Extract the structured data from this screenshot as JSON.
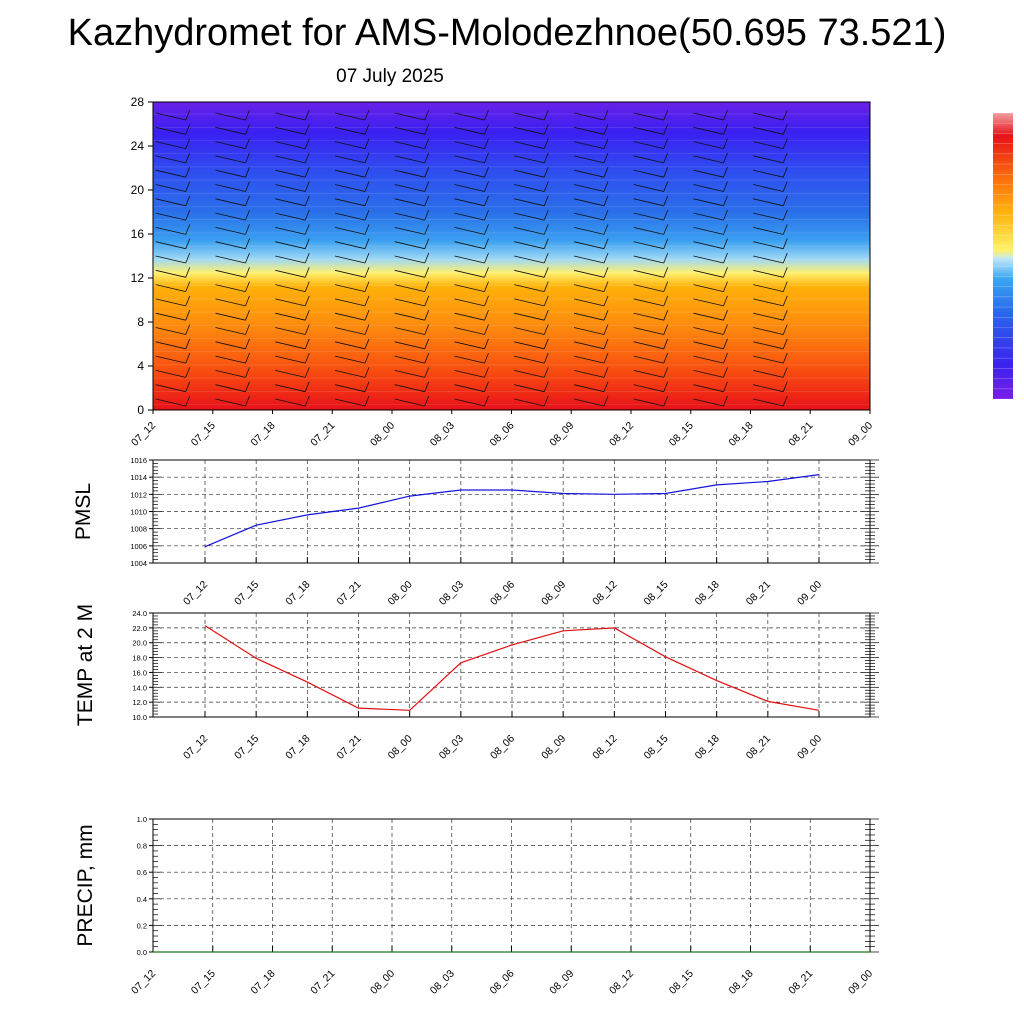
{
  "title": "Kazhydromet for AMS-Molodezhnoe(50.695 73.521)",
  "subtitle": "07 July 2025",
  "time_labels": [
    "07_12",
    "07_15",
    "07_18",
    "07_21",
    "08_00",
    "08_03",
    "08_06",
    "08_09",
    "08_12",
    "08_15",
    "08_18",
    "08_21",
    "09_00"
  ],
  "chart_data": [
    {
      "type": "heatmap",
      "name": "upper-air cross-section",
      "x": [
        "07_12",
        "07_15",
        "07_18",
        "07_21",
        "08_00",
        "08_03",
        "08_06",
        "08_09",
        "08_12",
        "08_15",
        "08_18",
        "08_21",
        "09_00"
      ],
      "ylim": [
        0,
        28
      ],
      "yticks": [
        0,
        4,
        8,
        12,
        16,
        20,
        24,
        28
      ],
      "wind_barbs": true,
      "colorbar": {
        "placement": "right",
        "tick_labels": false
      },
      "colors": [
        "#e8101a",
        "#f84a10",
        "#fd8a0e",
        "#ffb10a",
        "#fff070",
        "#9ed8f5",
        "#3aa0f0",
        "#2a70ea",
        "#2f4cf0",
        "#3a20f2",
        "#6a20e8"
      ]
    },
    {
      "type": "line",
      "ylabel": "PMSL",
      "x": [
        "07_12",
        "07_15",
        "07_18",
        "07_21",
        "08_00",
        "08_03",
        "08_06",
        "08_09",
        "08_12",
        "08_15",
        "08_18",
        "08_21",
        "09_00"
      ],
      "y": [
        1005.9,
        1008.4,
        1009.6,
        1010.4,
        1011.8,
        1012.5,
        1012.5,
        1012.1,
        1012.0,
        1012.1,
        1013.1,
        1013.5,
        1014.3
      ],
      "ylim": [
        1004,
        1016
      ],
      "yticks": [
        "1004",
        "1006",
        "1008",
        "1010",
        "1012",
        "1014",
        "1016"
      ],
      "grid": true,
      "color": "#1414d8"
    },
    {
      "type": "line",
      "ylabel": "TEMP at 2 M",
      "x": [
        "07_12",
        "07_15",
        "07_18",
        "07_21",
        "08_00",
        "08_03",
        "08_06",
        "08_09",
        "08_12",
        "08_15",
        "08_18",
        "08_21",
        "09_00"
      ],
      "y": [
        22.3,
        17.9,
        14.7,
        11.2,
        10.9,
        17.3,
        19.7,
        21.6,
        22.0,
        18.1,
        14.9,
        12.1,
        10.9
      ],
      "ylim": [
        10,
        24
      ],
      "yticks": [
        "10.0",
        "12.0",
        "14.0",
        "16.0",
        "18.0",
        "20.0",
        "22.0",
        "24.0"
      ],
      "grid": true,
      "color": "#e01010"
    },
    {
      "type": "line",
      "ylabel": "PRECIP, mm",
      "x": [
        "07_12",
        "07_15",
        "07_18",
        "07_21",
        "08_00",
        "08_03",
        "08_06",
        "08_09",
        "08_12",
        "08_15",
        "08_18",
        "08_21",
        "09_00"
      ],
      "y": [
        0,
        0,
        0,
        0,
        0,
        0,
        0,
        0,
        0,
        0,
        0,
        0,
        0
      ],
      "ylim": [
        0,
        1
      ],
      "yticks": [
        "0.0",
        "0.2",
        "0.4",
        "0.6",
        "0.8",
        "1.0"
      ],
      "grid": true,
      "color": "#1a7a1a"
    }
  ]
}
